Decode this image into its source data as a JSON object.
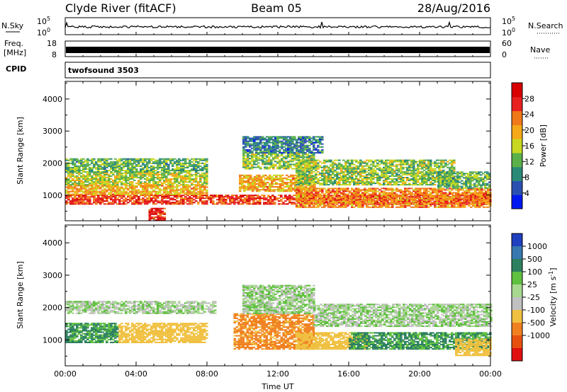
{
  "header": {
    "title_left": "Clyde River (fitACF)",
    "title_center": "Beam 05",
    "title_right": "28/Aug/2016"
  },
  "sky_panel": {
    "left_label": "N.Sky",
    "right_label": "N.Search",
    "ticks": [
      {
        "label": "10^5",
        "base": "10",
        "exp": "5",
        "value": 100000
      },
      {
        "label": "10^0",
        "base": "10",
        "exp": "0",
        "value": 1
      }
    ],
    "right_legend_line": "dotted"
  },
  "freq_panel": {
    "left_label_1": "Freq.",
    "left_label_2": "[MHz]",
    "left_ticks": [
      18,
      8
    ],
    "right_label": "Nave",
    "right_ticks": [
      60,
      0
    ]
  },
  "cpid_panel": {
    "label": "CPID",
    "program": "twofsound 3503"
  },
  "chart_data": [
    {
      "type": "heatmap",
      "name": "power",
      "ylabel": "Slant Range [km]",
      "ylim": [
        200,
        4550
      ],
      "yticks": [
        1000,
        2000,
        3000,
        4000
      ],
      "xlim_hours": [
        0,
        24
      ],
      "colorbar": {
        "label": "Power [dB]",
        "range": [
          0,
          32
        ],
        "ticks": [
          4,
          8,
          12,
          16,
          20,
          24,
          28
        ],
        "colors": [
          "#0018f0",
          "#2a4fb0",
          "#2a8a78",
          "#5cb04a",
          "#c8d820",
          "#f5a818",
          "#f07818",
          "#e82020",
          "#d80000"
        ]
      },
      "bands": [
        {
          "t": [
            0.0,
            24.0
          ],
          "r": [
            700,
            1000
          ],
          "value": 26
        },
        {
          "t": [
            0.0,
            8.0
          ],
          "r": [
            1000,
            1300
          ],
          "value": 20
        },
        {
          "t": [
            0.0,
            8.0
          ],
          "r": [
            1300,
            1700
          ],
          "value": 16
        },
        {
          "t": [
            0.0,
            8.0
          ],
          "r": [
            1700,
            2150
          ],
          "value": 12
        },
        {
          "t": [
            9.8,
            14.0
          ],
          "r": [
            1100,
            1600
          ],
          "value": 20
        },
        {
          "t": [
            10.0,
            14.0
          ],
          "r": [
            1800,
            2300
          ],
          "value": 14
        },
        {
          "t": [
            10.0,
            14.5
          ],
          "r": [
            2300,
            2800
          ],
          "value": 8
        },
        {
          "t": [
            13.0,
            22.0
          ],
          "r": [
            1300,
            2100
          ],
          "value": 14
        },
        {
          "t": [
            13.0,
            24.0
          ],
          "r": [
            600,
            1200
          ],
          "value": 22
        },
        {
          "t": [
            21.0,
            24.0
          ],
          "r": [
            1200,
            1700
          ],
          "value": 12
        },
        {
          "t": [
            4.7,
            5.6
          ],
          "r": [
            200,
            600
          ],
          "value": 28
        }
      ]
    },
    {
      "type": "heatmap",
      "name": "velocity",
      "ylabel": "Slant Range [km]",
      "ylim": [
        200,
        4550
      ],
      "yticks": [
        1000,
        2000,
        3000,
        4000
      ],
      "xlabel": "Time UT",
      "xticks": [
        "00:00",
        "04:00",
        "08:00",
        "12:00",
        "16:00",
        "20:00",
        "00:00"
      ],
      "xlim_hours": [
        0,
        24
      ],
      "colorbar": {
        "label": "Velocity [m s^-1]",
        "unit_base": "Velocity [m s",
        "unit_exp": "-1",
        "unit_close": "]",
        "ticks": [
          "1000",
          "500",
          "100",
          "25",
          "-25",
          "-100",
          "-500",
          "-1000"
        ],
        "colors": [
          "#2040c0",
          "#3878b0",
          "#2c8060",
          "#60c040",
          "#a8d890",
          "#c0c0c0",
          "#f0c040",
          "#f08020",
          "#e85010",
          "#e01010"
        ]
      },
      "bands": [
        {
          "t": [
            0.0,
            8.5
          ],
          "r": [
            1800,
            2200
          ],
          "value": -10
        },
        {
          "t": [
            0.0,
            3.0
          ],
          "r": [
            900,
            1500
          ],
          "value": 120
        },
        {
          "t": [
            3.0,
            8.0
          ],
          "r": [
            900,
            1500
          ],
          "value": -200
        },
        {
          "t": [
            9.5,
            14.0
          ],
          "r": [
            700,
            1800
          ],
          "value": -550
        },
        {
          "t": [
            10.0,
            14.0
          ],
          "r": [
            1800,
            2700
          ],
          "value": 0
        },
        {
          "t": [
            13.0,
            17.0
          ],
          "r": [
            700,
            1200
          ],
          "value": -250
        },
        {
          "t": [
            16.0,
            24.0
          ],
          "r": [
            700,
            1200
          ],
          "value": 120
        },
        {
          "t": [
            14.0,
            24.0
          ],
          "r": [
            1400,
            2100
          ],
          "value": 0
        },
        {
          "t": [
            22.0,
            24.0
          ],
          "r": [
            500,
            1000
          ],
          "value": -300
        }
      ]
    }
  ]
}
